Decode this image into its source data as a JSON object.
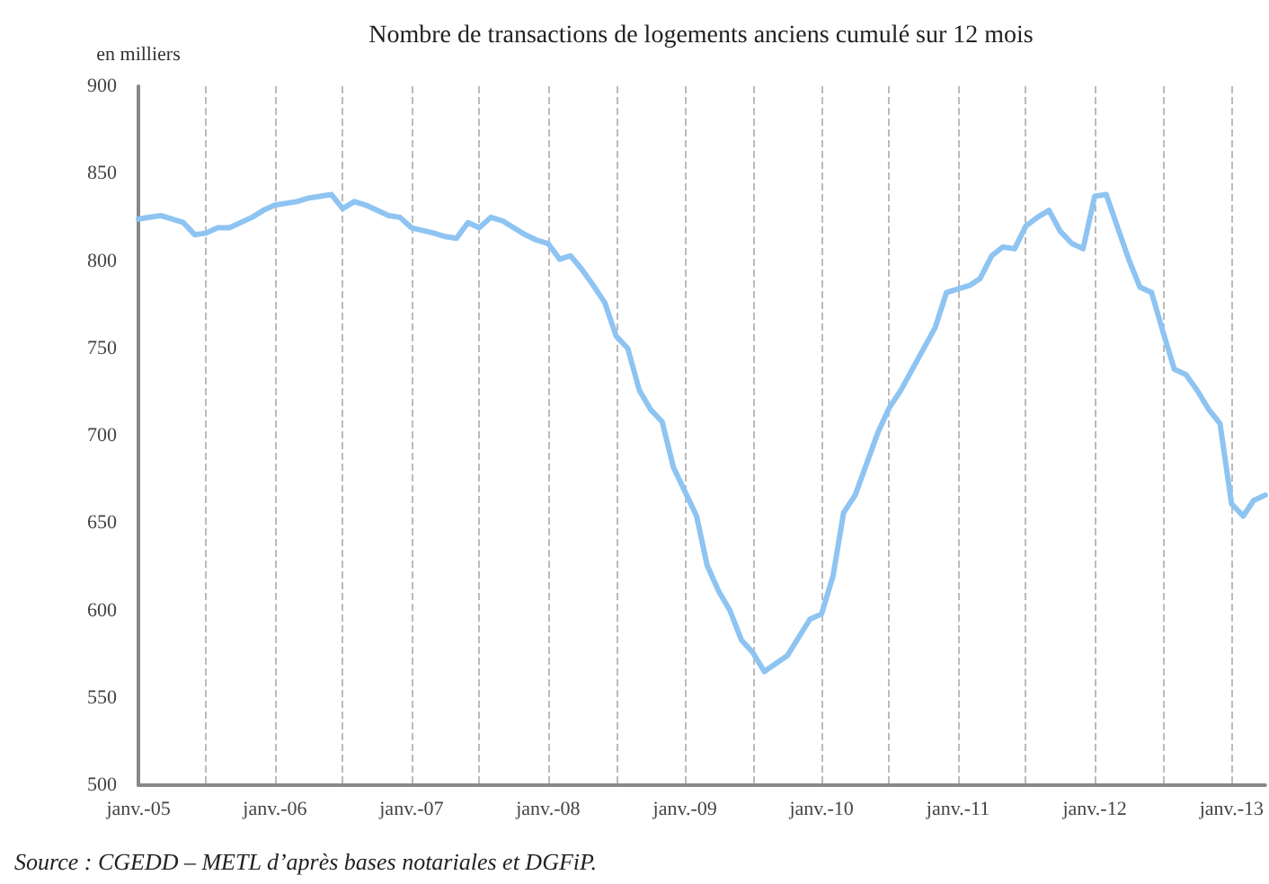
{
  "chart_data": {
    "type": "line",
    "title": "Nombre de transactions de logements anciens cumulé sur 12 mois",
    "ylabel": "en milliers",
    "annotations": [
      "Source : CGEDD – METL d’après bases notariales et DGFiP."
    ],
    "x": [
      "2005-01",
      "2005-03",
      "2005-05",
      "2005-06",
      "2005-07",
      "2005-08",
      "2005-09",
      "2005-11",
      "2005-12",
      "2006-01",
      "2006-03",
      "2006-04",
      "2006-06",
      "2006-07",
      "2006-08",
      "2006-09",
      "2006-11",
      "2006-12",
      "2007-01",
      "2007-03",
      "2007-04",
      "2007-05",
      "2007-06",
      "2007-07",
      "2007-08",
      "2007-09",
      "2007-11",
      "2007-12",
      "2008-01",
      "2008-02",
      "2008-03",
      "2008-04",
      "2008-05",
      "2008-06",
      "2008-07",
      "2008-08",
      "2008-09",
      "2008-10",
      "2008-11",
      "2008-12",
      "2009-02",
      "2009-03",
      "2009-04",
      "2009-05",
      "2009-06",
      "2009-07",
      "2009-08",
      "2009-10",
      "2009-12",
      "2010-01",
      "2010-02",
      "2010-03",
      "2010-04",
      "2010-06",
      "2010-07",
      "2010-08",
      "2010-11",
      "2010-12",
      "2011-02",
      "2011-03",
      "2011-04",
      "2011-05",
      "2011-06",
      "2011-07",
      "2011-08",
      "2011-09",
      "2011-10",
      "2011-11",
      "2011-12",
      "2012-01",
      "2012-02",
      "2012-03",
      "2012-04",
      "2012-05",
      "2012-06",
      "2012-07",
      "2012-08",
      "2012-09",
      "2012-10",
      "2012-11",
      "2012-12",
      "2013-01",
      "2013-02",
      "2013-03",
      "2013-04"
    ],
    "series": [
      {
        "color": "#8ec4f2",
        "values": [
          824,
          826,
          822,
          815,
          816,
          819,
          819,
          825,
          829,
          832,
          834,
          836,
          838,
          830,
          834,
          832,
          826,
          825,
          819,
          816,
          814,
          813,
          822,
          819,
          825,
          823,
          815,
          812,
          810,
          801,
          803,
          795,
          786,
          776,
          757,
          750,
          726,
          715,
          708,
          682,
          654,
          626,
          611,
          600,
          583,
          576,
          565,
          574,
          595,
          598,
          620,
          656,
          666,
          702,
          716,
          726,
          762,
          782,
          786,
          790,
          803,
          808,
          807,
          820,
          825,
          829,
          817,
          810,
          807,
          837,
          838,
          820,
          801,
          785,
          782,
          760,
          738,
          735,
          726,
          715,
          707,
          661,
          654,
          663,
          666
        ]
      }
    ],
    "xlim": [
      "2005-01",
      "2013-04"
    ],
    "xticks": [
      {
        "value": "2005-01",
        "label": "janv.-05"
      },
      {
        "value": "2005-07",
        "label": null
      },
      {
        "value": "2006-01",
        "label": "janv.-06"
      },
      {
        "value": "2006-07",
        "label": null
      },
      {
        "value": "2007-01",
        "label": "janv.-07"
      },
      {
        "value": "2007-07",
        "label": null
      },
      {
        "value": "2008-01",
        "label": "janv.-08"
      },
      {
        "value": "2008-07",
        "label": null
      },
      {
        "value": "2009-01",
        "label": "janv.-09"
      },
      {
        "value": "2009-07",
        "label": null
      },
      {
        "value": "2010-01",
        "label": "janv.-10"
      },
      {
        "value": "2010-07",
        "label": null
      },
      {
        "value": "2011-01",
        "label": "janv.-11"
      },
      {
        "value": "2011-07",
        "label": null
      },
      {
        "value": "2012-01",
        "label": "janv.-12"
      },
      {
        "value": "2012-07",
        "label": null
      },
      {
        "value": "2013-01",
        "label": "janv.-13"
      }
    ],
    "ylim": [
      500,
      900
    ],
    "yticks": [
      500,
      550,
      600,
      650,
      700,
      750,
      800,
      850,
      900
    ],
    "grid": "x",
    "marker": "none",
    "line_style": "solid"
  }
}
